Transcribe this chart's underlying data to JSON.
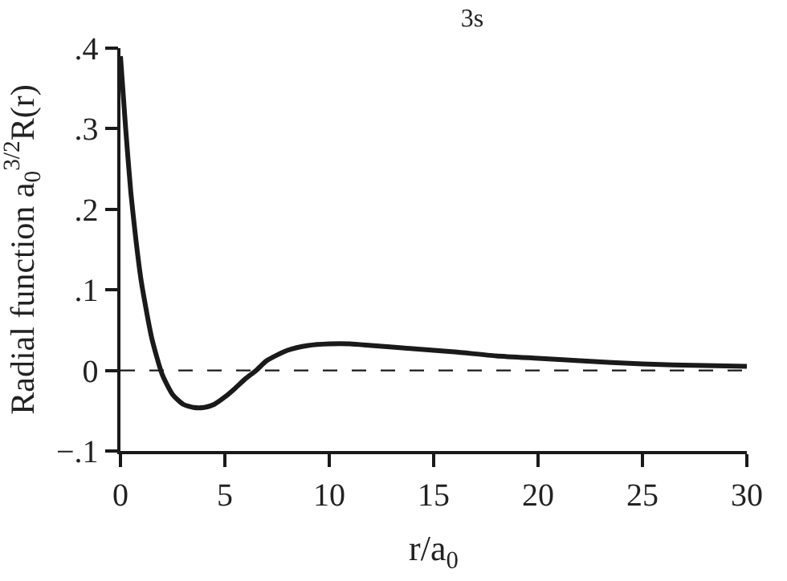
{
  "chart_data": {
    "type": "line",
    "title": "3s",
    "xlabel": "r/a$_{0}$",
    "ylabel": "Radial function a$_{0}$$^{3/2}$R(r)",
    "x": [
      0,
      0.25,
      0.5,
      0.75,
      1,
      1.5,
      2,
      2.5,
      3,
      3.5,
      4,
      4.5,
      5,
      5.5,
      6,
      6.5,
      7,
      8,
      9,
      10,
      11,
      12,
      14,
      16,
      18,
      20,
      22,
      25,
      28,
      30
    ],
    "series": [
      {
        "color": "#1a1a1a",
        "values": [
          0.39,
          0.3,
          0.22,
          0.16,
          0.11,
          0.04,
          -0.005,
          -0.03,
          -0.042,
          -0.046,
          -0.046,
          -0.042,
          -0.033,
          -0.022,
          -0.01,
          0,
          0.012,
          0.025,
          0.031,
          0.033,
          0.033,
          0.031,
          0.027,
          0.023,
          0.018,
          0.015,
          0.012,
          0.008,
          0.006,
          0.005
        ]
      }
    ],
    "xlim": [
      0,
      30
    ],
    "xticks": [
      0,
      5,
      10,
      15,
      20,
      25,
      30
    ],
    "ylim": [
      -0.1,
      0.4
    ],
    "yticks": [
      {
        "value": -0.1,
        "label": "−.1"
      },
      0,
      {
        "value": 0.1,
        "label": ".1"
      },
      {
        "value": 0.2,
        "label": ".2"
      },
      {
        "value": 0.3,
        "label": ".3"
      },
      {
        "value": 0.4,
        "label": ".4"
      }
    ],
    "ref_lines": [
      {
        "axis": "y",
        "value": 0,
        "color": "#1a1a1a",
        "line_style": "dashed"
      }
    ],
    "marker": "none",
    "line_style": "solid",
    "grid": false
  }
}
